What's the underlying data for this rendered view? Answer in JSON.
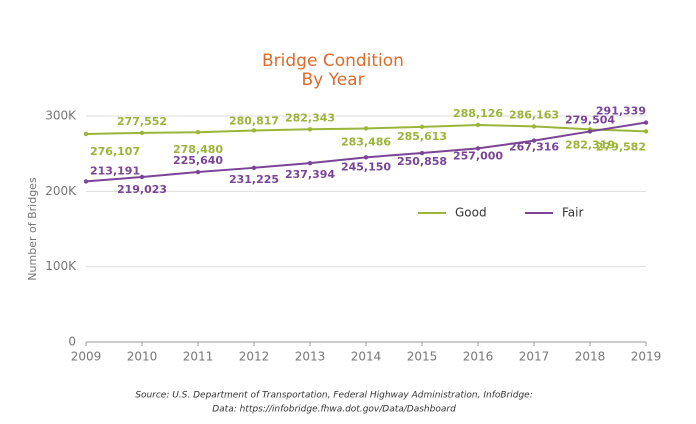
{
  "chart_data": {
    "type": "line",
    "title": [
      "Bridge Condition",
      "By Year"
    ],
    "y_label": "Number of Bridges",
    "source": [
      "Source: U.S. Department of Transportation, Federal Highway Administration, InfoBridge:",
      "Data: https://infobridge.fhwa.dot.gov/Data/Dashboard"
    ],
    "x": [
      2009,
      2010,
      2011,
      2012,
      2013,
      2014,
      2015,
      2016,
      2017,
      2018,
      2019
    ],
    "series": [
      {
        "name": "Good",
        "color": "#9bb53a",
        "values": [
          276107,
          277552,
          278480,
          280817,
          282343,
          283486,
          285613,
          288126,
          286163,
          282319,
          279582
        ],
        "value_labels": [
          "276,107",
          "277,552",
          "278,480",
          "280,817",
          "282,343",
          "283,486",
          "285,613",
          "288,126",
          "286,163",
          "282,319",
          "279,582"
        ]
      },
      {
        "name": "Fair",
        "color": "#7b4597",
        "values": [
          213191,
          219023,
          225640,
          231225,
          237394,
          245150,
          250858,
          257000,
          267316,
          279504,
          291339
        ],
        "value_labels": [
          "213,191",
          "219,023",
          "225,640",
          "231,225",
          "237,394",
          "245,150",
          "250,858",
          "257,000",
          "267,316",
          "279,504",
          "291,339"
        ]
      }
    ],
    "xlim": [
      2009,
      2019
    ],
    "xticks": [
      2009,
      2010,
      2011,
      2012,
      2013,
      2014,
      2015,
      2016,
      2017,
      2018,
      2019
    ],
    "ylim": [
      0,
      300000
    ],
    "yticks": [
      {
        "value": 0,
        "label": "0"
      },
      {
        "value": 100000,
        "label": "100K"
      },
      {
        "value": 200000,
        "label": "200K"
      },
      {
        "value": 300000,
        "label": "300K"
      }
    ],
    "grid": true
  }
}
